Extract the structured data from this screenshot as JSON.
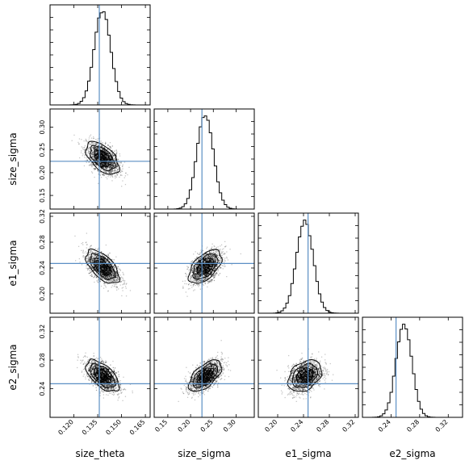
{
  "chart_data": {
    "type": "corner",
    "parameters": [
      {
        "name": "size_theta",
        "range": [
          0.105,
          0.168
        ],
        "ticks": [
          0.12,
          0.135,
          0.15,
          0.165
        ],
        "tick_labels": [
          "0.120",
          "0.135",
          "0.150",
          "0.165"
        ],
        "truth": 0.136,
        "peak": 0.138,
        "sd": 0.0052
      },
      {
        "name": "size_sigma",
        "range": [
          0.12,
          0.34
        ],
        "ticks": [
          0.15,
          0.2,
          0.25,
          0.3
        ],
        "tick_labels": [
          "0.15",
          "0.20",
          "0.25",
          "0.30"
        ],
        "truth": 0.225,
        "peak": 0.232,
        "sd": 0.018
      },
      {
        "name": "e1_sigma",
        "range": [
          0.17,
          0.325
        ],
        "ticks": [
          0.2,
          0.24,
          0.28,
          0.32
        ],
        "tick_labels": [
          "0.20",
          "0.24",
          "0.28",
          "0.32"
        ],
        "truth": 0.247,
        "peak": 0.242,
        "sd": 0.013
      },
      {
        "name": "e2_sigma",
        "range": [
          0.2,
          0.34
        ],
        "ticks": [
          0.24,
          0.28,
          0.32
        ],
        "tick_labels": [
          "0.24",
          "0.28",
          "0.32"
        ],
        "truth": 0.247,
        "peak": 0.258,
        "sd": 0.011
      }
    ],
    "correlations": {
      "size_sigma|size_theta": -0.55,
      "e1_sigma|size_theta": -0.6,
      "e1_sigma|size_sigma": 0.55,
      "e2_sigma|size_theta": -0.6,
      "e2_sigma|size_sigma": 0.6,
      "e2_sigma|e1_sigma": 0.35
    },
    "truth_color": "#5b8fc4",
    "hist_color": "#000000",
    "contour_levels_sigma": [
      0.5,
      1.0,
      1.5,
      2.0
    ]
  }
}
